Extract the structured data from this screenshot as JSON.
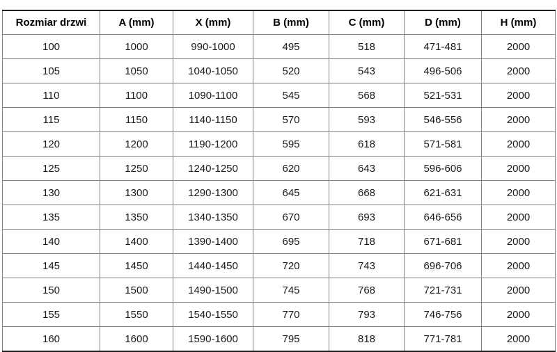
{
  "colors": {
    "background": "#ffffff",
    "grid_line": "#808080",
    "outer_border": "#1f1f1f",
    "text": "#1a1a1a"
  },
  "chart_data": {
    "type": "table",
    "title": "",
    "columns": [
      "Rozmiar drzwi",
      "A (mm)",
      "X (mm)",
      "B (mm)",
      "C (mm)",
      "D (mm)",
      "H (mm)"
    ],
    "rows": [
      [
        "100",
        "1000",
        "990-1000",
        "495",
        "518",
        "471-481",
        "2000"
      ],
      [
        "105",
        "1050",
        "1040-1050",
        "520",
        "543",
        "496-506",
        "2000"
      ],
      [
        "110",
        "1100",
        "1090-1100",
        "545",
        "568",
        "521-531",
        "2000"
      ],
      [
        "115",
        "1150",
        "1140-1150",
        "570",
        "593",
        "546-556",
        "2000"
      ],
      [
        "120",
        "1200",
        "1190-1200",
        "595",
        "618",
        "571-581",
        "2000"
      ],
      [
        "125",
        "1250",
        "1240-1250",
        "620",
        "643",
        "596-606",
        "2000"
      ],
      [
        "130",
        "1300",
        "1290-1300",
        "645",
        "668",
        "621-631",
        "2000"
      ],
      [
        "135",
        "1350",
        "1340-1350",
        "670",
        "693",
        "646-656",
        "2000"
      ],
      [
        "140",
        "1400",
        "1390-1400",
        "695",
        "718",
        "671-681",
        "2000"
      ],
      [
        "145",
        "1450",
        "1440-1450",
        "720",
        "743",
        "696-706",
        "2000"
      ],
      [
        "150",
        "1500",
        "1490-1500",
        "745",
        "768",
        "721-731",
        "2000"
      ],
      [
        "155",
        "1550",
        "1540-1550",
        "770",
        "793",
        "746-756",
        "2000"
      ],
      [
        "160",
        "1600",
        "1590-1600",
        "795",
        "818",
        "771-781",
        "2000"
      ]
    ]
  }
}
